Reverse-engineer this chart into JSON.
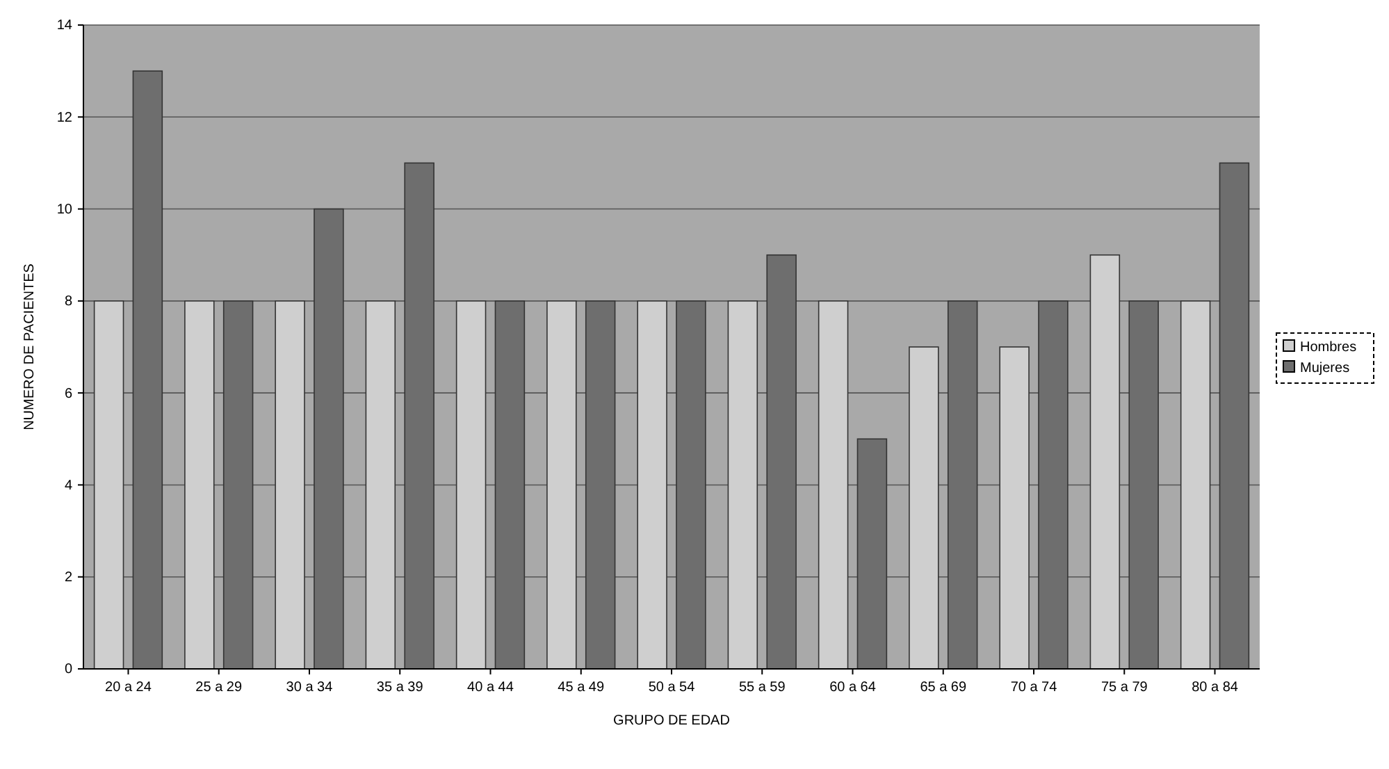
{
  "chart_data": {
    "type": "bar",
    "xlabel": "GRUPO DE EDAD",
    "ylabel": "NUMERO DE PACIENTES",
    "categories": [
      "20 a 24",
      "25 a 29",
      "30 a 34",
      "35 a 39",
      "40 a 44",
      "45 a 49",
      "50 a 54",
      "55 a 59",
      "60 a 64",
      "65 a 69",
      "70 a 74",
      "75 a 79",
      "80 a 84"
    ],
    "series": [
      {
        "name": "Hombres",
        "color": "#cfcfcf",
        "values": [
          8,
          8,
          8,
          8,
          8,
          8,
          8,
          8,
          8,
          7,
          7,
          9,
          8
        ]
      },
      {
        "name": "Mujeres",
        "color": "#6e6e6e",
        "values": [
          13,
          8,
          10,
          11,
          8,
          8,
          8,
          9,
          5,
          8,
          8,
          8,
          11
        ]
      }
    ],
    "ylim": [
      0,
      14
    ],
    "yticks": [
      0,
      2,
      4,
      6,
      8,
      10,
      12,
      14
    ],
    "grid": "y",
    "legend": "right"
  }
}
